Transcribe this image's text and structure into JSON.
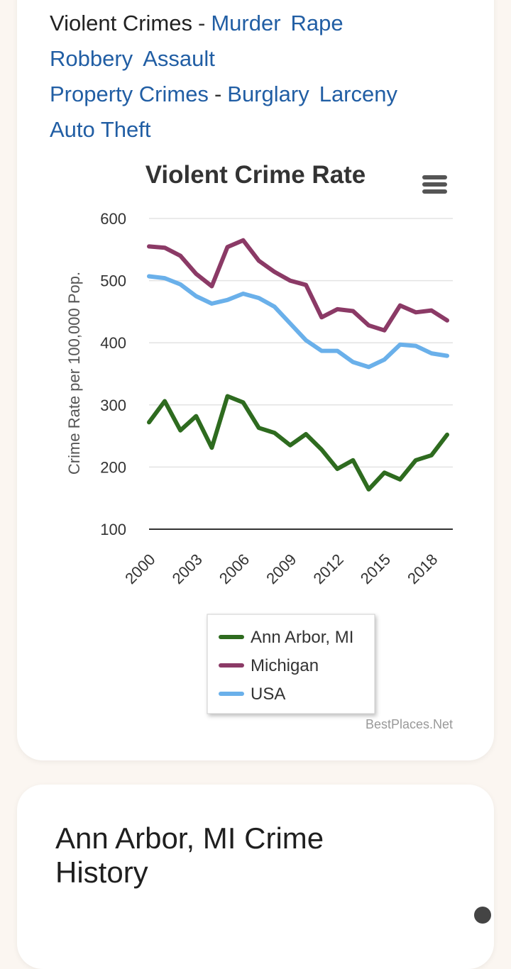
{
  "nav": {
    "violent_label": "Violent Crimes",
    "violent_links": [
      "Murder",
      "Rape",
      "Robbery",
      "Assault"
    ],
    "property_label": "Property Crimes",
    "property_links": [
      "Burglary",
      "Larceny",
      "Auto Theft"
    ],
    "separator": "-"
  },
  "menu_icon": "hamburger-menu-icon",
  "credit": "BestPlaces.Net",
  "section2": {
    "title_line1": "Ann Arbor, MI Crime",
    "title_line2": "History"
  },
  "chart_data": {
    "type": "line",
    "title": "Violent Crime Rate",
    "ylabel": "Crime Rate per 100,000 Pop.",
    "xlabel": "",
    "ylim": [
      100,
      600
    ],
    "yticks": [
      100,
      200,
      300,
      400,
      500,
      600
    ],
    "x": [
      2000,
      2001,
      2002,
      2003,
      2004,
      2005,
      2006,
      2007,
      2008,
      2009,
      2010,
      2011,
      2012,
      2013,
      2014,
      2015,
      2016,
      2017,
      2018,
      2019
    ],
    "xtick_labels": [
      "2000",
      "2003",
      "2006",
      "2009",
      "2012",
      "2015",
      "2018"
    ],
    "grid": true,
    "legend_position": "bottom",
    "series": [
      {
        "name": "Ann Arbor, MI",
        "color": "#2e6b1f",
        "values": [
          272,
          306,
          259,
          282,
          231,
          314,
          304,
          263,
          255,
          235,
          253,
          228,
          197,
          211,
          164,
          191,
          180,
          211,
          219,
          252
        ]
      },
      {
        "name": "Michigan",
        "color": "#8b3a66",
        "values": [
          555,
          553,
          540,
          511,
          491,
          554,
          565,
          532,
          514,
          500,
          493,
          441,
          454,
          451,
          428,
          420,
          460,
          449,
          452,
          436
        ]
      },
      {
        "name": "USA",
        "color": "#6ab0ea",
        "values": [
          507,
          504,
          494,
          475,
          463,
          469,
          479,
          472,
          458,
          431,
          404,
          387,
          387,
          369,
          361,
          373,
          397,
          395,
          383,
          379
        ]
      }
    ]
  }
}
